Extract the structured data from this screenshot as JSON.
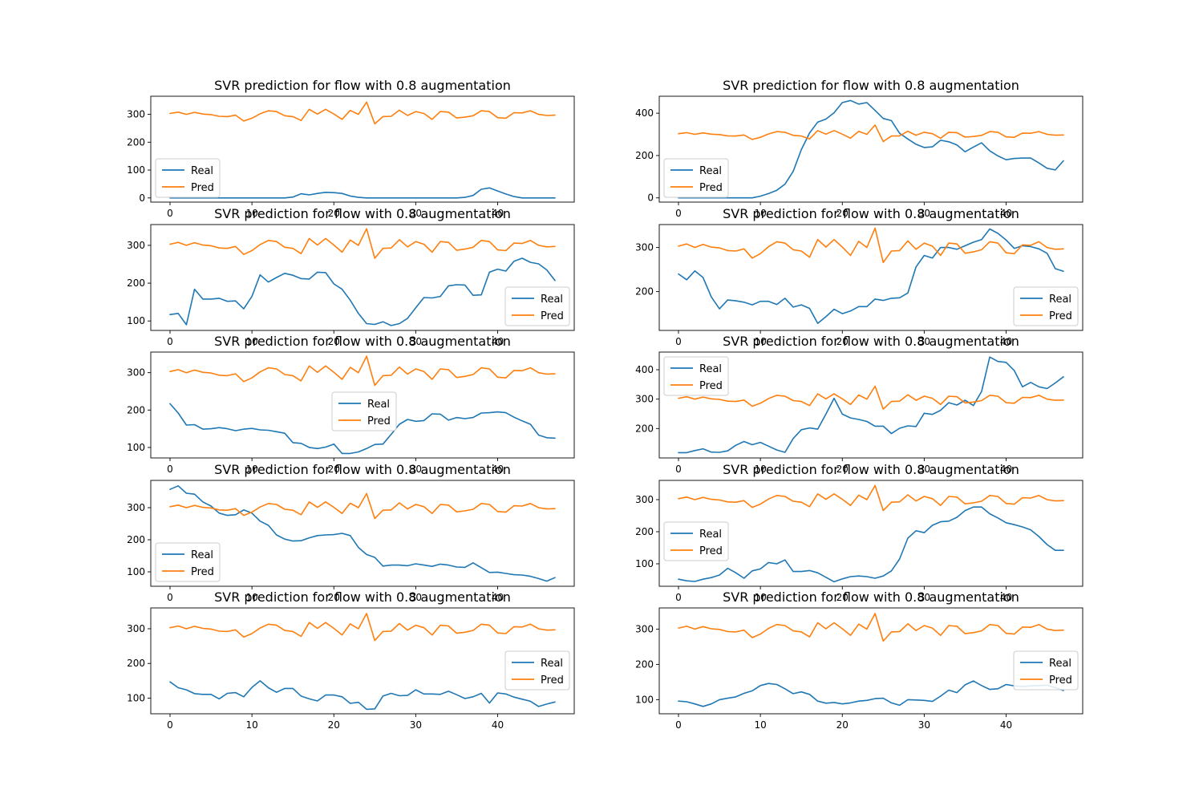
{
  "colors": {
    "Real": "#1f77b4",
    "Pred": "#ff7f0e",
    "axes": "#000000",
    "legend_border": "#cccccc"
  },
  "pred_series": [
    303,
    308,
    300,
    307,
    301,
    299,
    293,
    292,
    297,
    276,
    286,
    302,
    313,
    310,
    295,
    292,
    278,
    318,
    301,
    318,
    301,
    282,
    314,
    300,
    344,
    266,
    292,
    293,
    315,
    296,
    310,
    303,
    282,
    310,
    308,
    287,
    290,
    295,
    313,
    310,
    288,
    286,
    306,
    305,
    313,
    300,
    296,
    297
  ],
  "chart_data": [
    {
      "type": "line",
      "title": "SVR prediction for flow with 0.8 augmentation",
      "x": [
        0,
        1,
        2,
        3,
        4,
        5,
        6,
        7,
        8,
        9,
        10,
        11,
        12,
        13,
        14,
        15,
        16,
        17,
        18,
        19,
        20,
        21,
        22,
        23,
        24,
        25,
        26,
        27,
        28,
        29,
        30,
        31,
        32,
        33,
        34,
        35,
        36,
        37,
        38,
        39,
        40,
        41,
        42,
        43,
        44,
        45,
        46,
        47
      ],
      "xticks": [
        0,
        10,
        20,
        30,
        40
      ],
      "yticks": [
        0,
        100,
        200,
        300
      ],
      "ylim": [
        -15,
        365
      ],
      "xlim": [
        -2.35,
        49.35
      ],
      "legend": "lower-left",
      "series": [
        {
          "name": "Real",
          "values": [
            0,
            0,
            0,
            0,
            0,
            0,
            0,
            0,
            0,
            0,
            0,
            0,
            0,
            0,
            0,
            3,
            15,
            11,
            16,
            20,
            19,
            16,
            7,
            2,
            0,
            0,
            0,
            0,
            0,
            0,
            0,
            0,
            0,
            0,
            0,
            0,
            2,
            9,
            31,
            36,
            25,
            14,
            5,
            0,
            0,
            0,
            0,
            0
          ]
        },
        {
          "name": "Pred"
        }
      ]
    },
    {
      "type": "line",
      "title": "SVR prediction for flow with 0.8 augmentation",
      "x": [
        0,
        1,
        2,
        3,
        4,
        5,
        6,
        7,
        8,
        9,
        10,
        11,
        12,
        13,
        14,
        15,
        16,
        17,
        18,
        19,
        20,
        21,
        22,
        23,
        24,
        25,
        26,
        27,
        28,
        29,
        30,
        31,
        32,
        33,
        34,
        35,
        36,
        37,
        38,
        39,
        40,
        41,
        42,
        43,
        44,
        45,
        46,
        47
      ],
      "xticks": [
        0,
        10,
        20,
        30,
        40
      ],
      "yticks": [
        0,
        200,
        400
      ],
      "ylim": [
        -20,
        480
      ],
      "xlim": [
        -2.35,
        49.35
      ],
      "legend": "lower-left",
      "series": [
        {
          "name": "Real",
          "values": [
            0,
            0,
            0,
            0,
            0,
            0,
            0,
            0,
            0,
            0,
            8,
            20,
            36,
            65,
            125,
            228,
            306,
            358,
            372,
            402,
            450,
            460,
            443,
            450,
            413,
            375,
            365,
            305,
            278,
            253,
            238,
            241,
            272,
            265,
            250,
            218,
            240,
            260,
            222,
            198,
            180,
            186,
            188,
            188,
            165,
            140,
            132,
            175
          ]
        },
        {
          "name": "Pred"
        }
      ]
    },
    {
      "type": "line",
      "title": "SVR prediction for flow with 0.8 augmentation",
      "x": [
        0,
        1,
        2,
        3,
        4,
        5,
        6,
        7,
        8,
        9,
        10,
        11,
        12,
        13,
        14,
        15,
        16,
        17,
        18,
        19,
        20,
        21,
        22,
        23,
        24,
        25,
        26,
        27,
        28,
        29,
        30,
        31,
        32,
        33,
        34,
        35,
        36,
        37,
        38,
        39,
        40,
        41,
        42,
        43,
        44,
        45,
        46,
        47
      ],
      "xticks": [
        0,
        10,
        20,
        30,
        40
      ],
      "yticks": [
        100,
        200,
        300
      ],
      "ylim": [
        75,
        355
      ],
      "xlim": [
        -2.35,
        49.35
      ],
      "legend": "lower-right",
      "series": [
        {
          "name": "Real",
          "values": [
            117,
            120,
            90,
            184,
            158,
            158,
            160,
            152,
            153,
            132,
            165,
            222,
            203,
            215,
            226,
            221,
            212,
            211,
            229,
            228,
            198,
            184,
            155,
            120,
            93,
            91,
            98,
            88,
            93,
            107,
            135,
            162,
            161,
            165,
            193,
            196,
            195,
            168,
            169,
            229,
            237,
            232,
            258,
            266,
            255,
            251,
            235,
            207
          ]
        },
        {
          "name": "Pred"
        }
      ]
    },
    {
      "type": "line",
      "title": "SVR prediction for flow with 0.8 augmentation",
      "x": [
        0,
        1,
        2,
        3,
        4,
        5,
        6,
        7,
        8,
        9,
        10,
        11,
        12,
        13,
        14,
        15,
        16,
        17,
        18,
        19,
        20,
        21,
        22,
        23,
        24,
        25,
        26,
        27,
        28,
        29,
        30,
        31,
        32,
        33,
        34,
        35,
        36,
        37,
        38,
        39,
        40,
        41,
        42,
        43,
        44,
        45,
        46,
        47
      ],
      "xticks": [
        0,
        10,
        20,
        30,
        40
      ],
      "yticks": [
        200,
        300
      ],
      "ylim": [
        112,
        352
      ],
      "xlim": [
        -2.35,
        49.35
      ],
      "legend": "lower-right",
      "series": [
        {
          "name": "Real",
          "values": [
            240,
            227,
            247,
            232,
            188,
            161,
            181,
            179,
            176,
            170,
            178,
            178,
            171,
            185,
            165,
            170,
            162,
            128,
            143,
            160,
            150,
            156,
            166,
            166,
            183,
            180,
            185,
            186,
            197,
            256,
            282,
            276,
            300,
            300,
            296,
            304,
            312,
            318,
            342,
            332,
            317,
            298,
            304,
            302,
            297,
            287,
            252,
            246
          ]
        },
        {
          "name": "Pred"
        }
      ]
    },
    {
      "type": "line",
      "title": "SVR prediction for flow with 0.8 augmentation",
      "x": [
        0,
        1,
        2,
        3,
        4,
        5,
        6,
        7,
        8,
        9,
        10,
        11,
        12,
        13,
        14,
        15,
        16,
        17,
        18,
        19,
        20,
        21,
        22,
        23,
        24,
        25,
        26,
        27,
        28,
        29,
        30,
        31,
        32,
        33,
        34,
        35,
        36,
        37,
        38,
        39,
        40,
        41,
        42,
        43,
        44,
        45,
        46,
        47
      ],
      "xticks": [
        0,
        10,
        20,
        30,
        40
      ],
      "yticks": [
        100,
        200,
        300
      ],
      "ylim": [
        72,
        355
      ],
      "xlim": [
        -2.35,
        49.35
      ],
      "legend": "center",
      "series": [
        {
          "name": "Real",
          "values": [
            217,
            192,
            160,
            161,
            149,
            150,
            153,
            150,
            145,
            149,
            151,
            147,
            146,
            142,
            138,
            113,
            111,
            100,
            97,
            101,
            109,
            84,
            84,
            88,
            97,
            108,
            109,
            135,
            162,
            175,
            170,
            172,
            190,
            189,
            173,
            180,
            177,
            180,
            192,
            193,
            195,
            193,
            181,
            171,
            162,
            133,
            126,
            125
          ]
        },
        {
          "name": "Pred"
        }
      ]
    },
    {
      "type": "line",
      "title": "SVR prediction for flow with 0.8 augmentation",
      "x": [
        0,
        1,
        2,
        3,
        4,
        5,
        6,
        7,
        8,
        9,
        10,
        11,
        12,
        13,
        14,
        15,
        16,
        17,
        18,
        19,
        20,
        21,
        22,
        23,
        24,
        25,
        26,
        27,
        28,
        29,
        30,
        31,
        32,
        33,
        34,
        35,
        36,
        37,
        38,
        39,
        40,
        41,
        42,
        43,
        44,
        45,
        46,
        47
      ],
      "xticks": [
        0,
        10,
        20,
        30,
        40
      ],
      "yticks": [
        200,
        300,
        400
      ],
      "ylim": [
        100,
        460
      ],
      "xlim": [
        -2.35,
        49.35
      ],
      "legend": "upper-left",
      "series": [
        {
          "name": "Real",
          "values": [
            118,
            118,
            125,
            131,
            120,
            119,
            124,
            143,
            156,
            145,
            153,
            140,
            127,
            119,
            166,
            196,
            202,
            198,
            249,
            303,
            249,
            236,
            231,
            224,
            208,
            208,
            183,
            201,
            209,
            207,
            252,
            248,
            262,
            288,
            280,
            296,
            278,
            326,
            443,
            428,
            425,
            397,
            342,
            357,
            342,
            336,
            355,
            376
          ]
        },
        {
          "name": "Pred"
        }
      ]
    },
    {
      "type": "line",
      "title": "SVR prediction for flow with 0.8 augmentation",
      "x": [
        0,
        1,
        2,
        3,
        4,
        5,
        6,
        7,
        8,
        9,
        10,
        11,
        12,
        13,
        14,
        15,
        16,
        17,
        18,
        19,
        20,
        21,
        22,
        23,
        24,
        25,
        26,
        27,
        28,
        29,
        30,
        31,
        32,
        33,
        34,
        35,
        36,
        37,
        38,
        39,
        40,
        41,
        42,
        43,
        44,
        45,
        46,
        47
      ],
      "xticks": [
        0,
        10,
        20,
        30,
        40
      ],
      "yticks": [
        100,
        200,
        300
      ],
      "ylim": [
        55,
        385
      ],
      "xlim": [
        -2.35,
        49.35
      ],
      "legend": "lower-left",
      "series": [
        {
          "name": "Real",
          "values": [
            357,
            368,
            345,
            342,
            318,
            305,
            283,
            276,
            278,
            293,
            283,
            258,
            245,
            215,
            202,
            196,
            197,
            206,
            213,
            215,
            216,
            220,
            213,
            176,
            154,
            145,
            118,
            121,
            121,
            119,
            125,
            121,
            117,
            124,
            121,
            115,
            114,
            128,
            113,
            98,
            99,
            95,
            91,
            90,
            86,
            79,
            71,
            82
          ]
        },
        {
          "name": "Pred"
        }
      ]
    },
    {
      "type": "line",
      "title": "SVR prediction for flow with 0.8 augmentation",
      "x": [
        0,
        1,
        2,
        3,
        4,
        5,
        6,
        7,
        8,
        9,
        10,
        11,
        12,
        13,
        14,
        15,
        16,
        17,
        18,
        19,
        20,
        21,
        22,
        23,
        24,
        25,
        26,
        27,
        28,
        29,
        30,
        31,
        32,
        33,
        34,
        35,
        36,
        37,
        38,
        39,
        40,
        41,
        42,
        43,
        44,
        45,
        46,
        47
      ],
      "xticks": [
        0,
        10,
        20,
        30,
        40
      ],
      "yticks": [
        100,
        200,
        300
      ],
      "ylim": [
        30,
        360
      ],
      "xlim": [
        -2.35,
        49.35
      ],
      "legend": "center-left",
      "series": [
        {
          "name": "Real",
          "values": [
            52,
            47,
            45,
            52,
            57,
            65,
            86,
            72,
            55,
            78,
            84,
            104,
            100,
            112,
            76,
            76,
            79,
            72,
            58,
            44,
            53,
            60,
            62,
            60,
            55,
            62,
            78,
            115,
            180,
            203,
            197,
            220,
            231,
            233,
            245,
            266,
            277,
            277,
            256,
            243,
            228,
            222,
            215,
            206,
            185,
            160,
            142,
            142
          ]
        },
        {
          "name": "Pred"
        }
      ]
    },
    {
      "type": "line",
      "title": "SVR prediction for flow with 0.8 augmentation",
      "x": [
        0,
        1,
        2,
        3,
        4,
        5,
        6,
        7,
        8,
        9,
        10,
        11,
        12,
        13,
        14,
        15,
        16,
        17,
        18,
        19,
        20,
        21,
        22,
        23,
        24,
        25,
        26,
        27,
        28,
        29,
        30,
        31,
        32,
        33,
        34,
        35,
        36,
        37,
        38,
        39,
        40,
        41,
        42,
        43,
        44,
        45,
        46,
        47
      ],
      "xticks": [
        0,
        10,
        20,
        30,
        40
      ],
      "yticks": [
        100,
        200,
        300
      ],
      "ylim": [
        55,
        360
      ],
      "xlim": [
        -2.35,
        49.35
      ],
      "legend": "center-right",
      "series": [
        {
          "name": "Real",
          "values": [
            147,
            130,
            124,
            113,
            111,
            111,
            98,
            114,
            116,
            104,
            131,
            150,
            130,
            117,
            128,
            128,
            106,
            98,
            92,
            109,
            109,
            104,
            85,
            88,
            68,
            69,
            106,
            114,
            107,
            108,
            124,
            112,
            112,
            111,
            120,
            110,
            99,
            104,
            114,
            86,
            115,
            112,
            103,
            97,
            91,
            76,
            83,
            89
          ]
        },
        {
          "name": "Pred"
        }
      ]
    },
    {
      "type": "line",
      "title": "SVR prediction for flow with 0.8 augmentation",
      "x": [
        0,
        1,
        2,
        3,
        4,
        5,
        6,
        7,
        8,
        9,
        10,
        11,
        12,
        13,
        14,
        15,
        16,
        17,
        18,
        19,
        20,
        21,
        22,
        23,
        24,
        25,
        26,
        27,
        28,
        29,
        30,
        31,
        32,
        33,
        34,
        35,
        36,
        37,
        38,
        39,
        40,
        41,
        42,
        43,
        44,
        45,
        46,
        47
      ],
      "xticks": [
        0,
        10,
        20,
        30,
        40
      ],
      "yticks": [
        100,
        200,
        300
      ],
      "ylim": [
        60,
        360
      ],
      "xlim": [
        -2.35,
        49.35
      ],
      "legend": "center-right",
      "series": [
        {
          "name": "Real",
          "values": [
            96,
            94,
            88,
            81,
            88,
            100,
            104,
            108,
            118,
            125,
            140,
            146,
            143,
            131,
            117,
            122,
            115,
            96,
            90,
            92,
            88,
            91,
            96,
            98,
            103,
            104,
            91,
            84,
            100,
            99,
            98,
            95,
            110,
            127,
            120,
            142,
            153,
            140,
            129,
            131,
            143,
            139,
            137,
            139,
            140,
            141,
            134,
            126
          ]
        },
        {
          "name": "Pred"
        }
      ]
    }
  ]
}
